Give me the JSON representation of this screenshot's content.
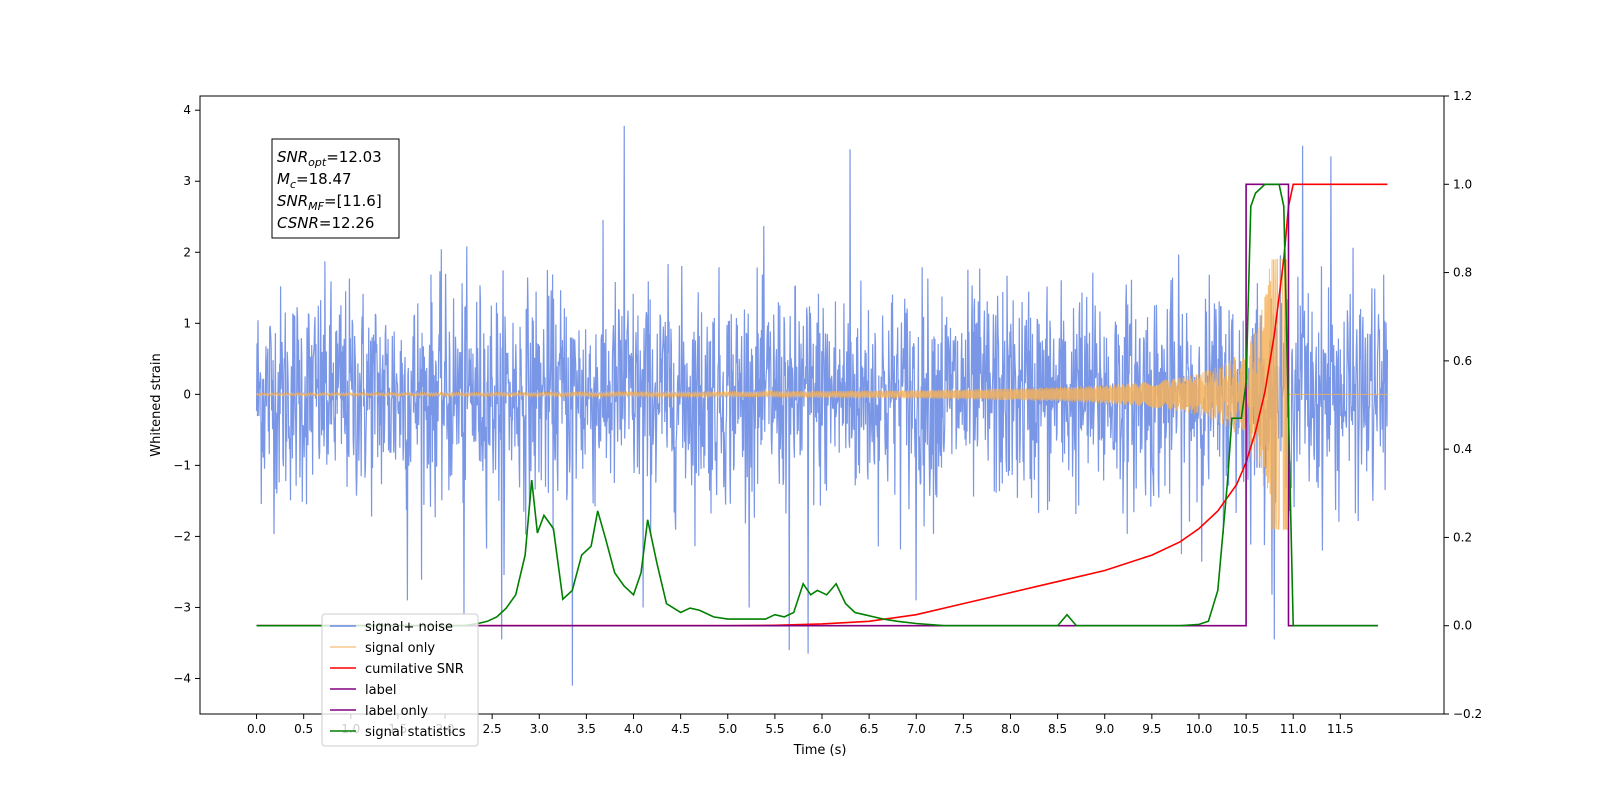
{
  "chart_data": {
    "type": "line",
    "xlabel": "Time (s)",
    "ylabel": "Whitened strain",
    "xlim": [
      -0.6,
      12.6
    ],
    "ylim_left": [
      -4.5,
      4.2
    ],
    "ylim_right": [
      -0.2,
      1.2
    ],
    "x_ticks": [
      0.0,
      0.5,
      1.0,
      1.5,
      2.0,
      2.5,
      3.0,
      3.5,
      4.0,
      4.5,
      5.0,
      5.5,
      6.0,
      6.5,
      7.0,
      7.5,
      8.0,
      8.5,
      9.0,
      9.5,
      10.0,
      10.5,
      11.0,
      11.5
    ],
    "x_tick_labels": [
      "0.0",
      "0.5",
      "1.0",
      "1.5",
      "2.0",
      "2.5",
      "3.0",
      "3.5",
      "4.0",
      "4.5",
      "5.0",
      "5.5",
      "6.0",
      "6.5",
      "7.0",
      "7.5",
      "8.0",
      "8.5",
      "9.0",
      "9.5",
      "10.0",
      "10.5",
      "11.0",
      "11.5"
    ],
    "y_left_ticks": [
      4,
      3,
      2,
      1,
      0,
      -1,
      -2,
      -3,
      -4
    ],
    "y_left_tick_labels": [
      "4",
      "3",
      "2",
      "1",
      "0",
      "−1",
      "−2",
      "−3",
      "−4"
    ],
    "y_right_ticks": [
      1.2,
      1.0,
      0.8,
      0.6,
      0.4,
      0.2,
      0.0,
      -0.2
    ],
    "y_right_tick_labels": [
      "1.2",
      "1.0",
      "0.8",
      "0.6",
      "0.4",
      "0.2",
      "0.0",
      "−0.2"
    ],
    "grid": false,
    "legend_position": "lower-left",
    "annotation": {
      "lines": [
        {
          "sym": "SNR",
          "sub": "opt",
          "value": "=12.03"
        },
        {
          "sym": "M",
          "sub": "c",
          "value": "=18.47"
        },
        {
          "sym": "SNR",
          "sub": "MF",
          "value": "=[11.6]"
        },
        {
          "sym": "CSNR",
          "sub": "",
          "value": "=12.26"
        }
      ]
    },
    "series": [
      {
        "name": "signal+ noise",
        "axis": "left",
        "color": "#6a8be4",
        "kind": "noise",
        "x_range": [
          0.0,
          12.0
        ],
        "amplitude_std": 0.75,
        "spikes": [
          [
            3.9,
            3.78
          ],
          [
            6.3,
            3.45
          ],
          [
            11.1,
            3.5
          ],
          [
            11.4,
            3.35
          ],
          [
            3.35,
            -4.1
          ],
          [
            5.85,
            -3.65
          ],
          [
            5.65,
            -3.6
          ],
          [
            10.8,
            -3.45
          ],
          [
            2.6,
            -3.45
          ],
          [
            1.6,
            -2.9
          ],
          [
            2.2,
            -3.1
          ],
          [
            4.1,
            -3.0
          ],
          [
            7.0,
            -2.9
          ]
        ]
      },
      {
        "name": "signal only",
        "axis": "left",
        "color": "#f5b25a",
        "kind": "chirp",
        "x_range": [
          0.0,
          12.0
        ],
        "merger_time": 10.95
      },
      {
        "name": "cumilative SNR",
        "axis": "right",
        "color": "#ff0000",
        "x": [
          0.0,
          5.0,
          5.5,
          6.0,
          6.5,
          7.0,
          7.5,
          8.0,
          8.5,
          9.0,
          9.5,
          9.8,
          10.0,
          10.2,
          10.4,
          10.5,
          10.6,
          10.7,
          10.8,
          10.9,
          10.95,
          11.0,
          12.0
        ],
        "y": [
          0.0,
          0.0,
          0.001,
          0.004,
          0.01,
          0.025,
          0.05,
          0.075,
          0.1,
          0.125,
          0.16,
          0.19,
          0.22,
          0.26,
          0.32,
          0.37,
          0.44,
          0.53,
          0.66,
          0.83,
          0.95,
          1.0,
          1.0
        ]
      },
      {
        "name": "label",
        "axis": "right",
        "color": "#800080",
        "x": [
          0.0,
          10.5,
          10.5,
          10.95,
          10.95,
          11.9
        ],
        "y": [
          0.0,
          0.0,
          1.0,
          1.0,
          0.0,
          0.0
        ]
      },
      {
        "name": "label only",
        "axis": "right",
        "color": "#800080",
        "legend_only": true,
        "x": [],
        "y": []
      },
      {
        "name": "signal statistics",
        "axis": "right",
        "color": "#008000",
        "x": [
          0.0,
          2.2,
          2.35,
          2.45,
          2.55,
          2.65,
          2.75,
          2.85,
          2.92,
          2.98,
          3.05,
          3.15,
          3.25,
          3.35,
          3.45,
          3.55,
          3.62,
          3.7,
          3.8,
          3.9,
          4.0,
          4.08,
          4.15,
          4.25,
          4.35,
          4.5,
          4.6,
          4.7,
          4.85,
          5.0,
          5.2,
          5.4,
          5.5,
          5.6,
          5.7,
          5.8,
          5.88,
          5.95,
          6.05,
          6.15,
          6.25,
          6.35,
          6.45,
          6.55,
          6.65,
          6.8,
          7.0,
          7.3,
          8.5,
          8.6,
          8.7,
          9.8,
          10.0,
          10.1,
          10.2,
          10.3,
          10.35,
          10.45,
          10.5,
          10.55,
          10.6,
          10.7,
          10.85,
          10.9,
          11.0,
          11.9
        ],
        "y": [
          0.0,
          0.0,
          0.005,
          0.01,
          0.02,
          0.04,
          0.07,
          0.16,
          0.33,
          0.21,
          0.25,
          0.22,
          0.06,
          0.08,
          0.16,
          0.18,
          0.26,
          0.2,
          0.12,
          0.09,
          0.07,
          0.12,
          0.24,
          0.14,
          0.05,
          0.03,
          0.04,
          0.035,
          0.02,
          0.015,
          0.015,
          0.015,
          0.025,
          0.02,
          0.03,
          0.095,
          0.07,
          0.08,
          0.07,
          0.095,
          0.05,
          0.03,
          0.025,
          0.02,
          0.015,
          0.01,
          0.005,
          0.0,
          0.0,
          0.025,
          0.0,
          0.0,
          0.003,
          0.01,
          0.08,
          0.32,
          0.47,
          0.47,
          0.55,
          0.95,
          0.98,
          1.0,
          1.0,
          0.95,
          0.0,
          0.0
        ]
      }
    ]
  }
}
